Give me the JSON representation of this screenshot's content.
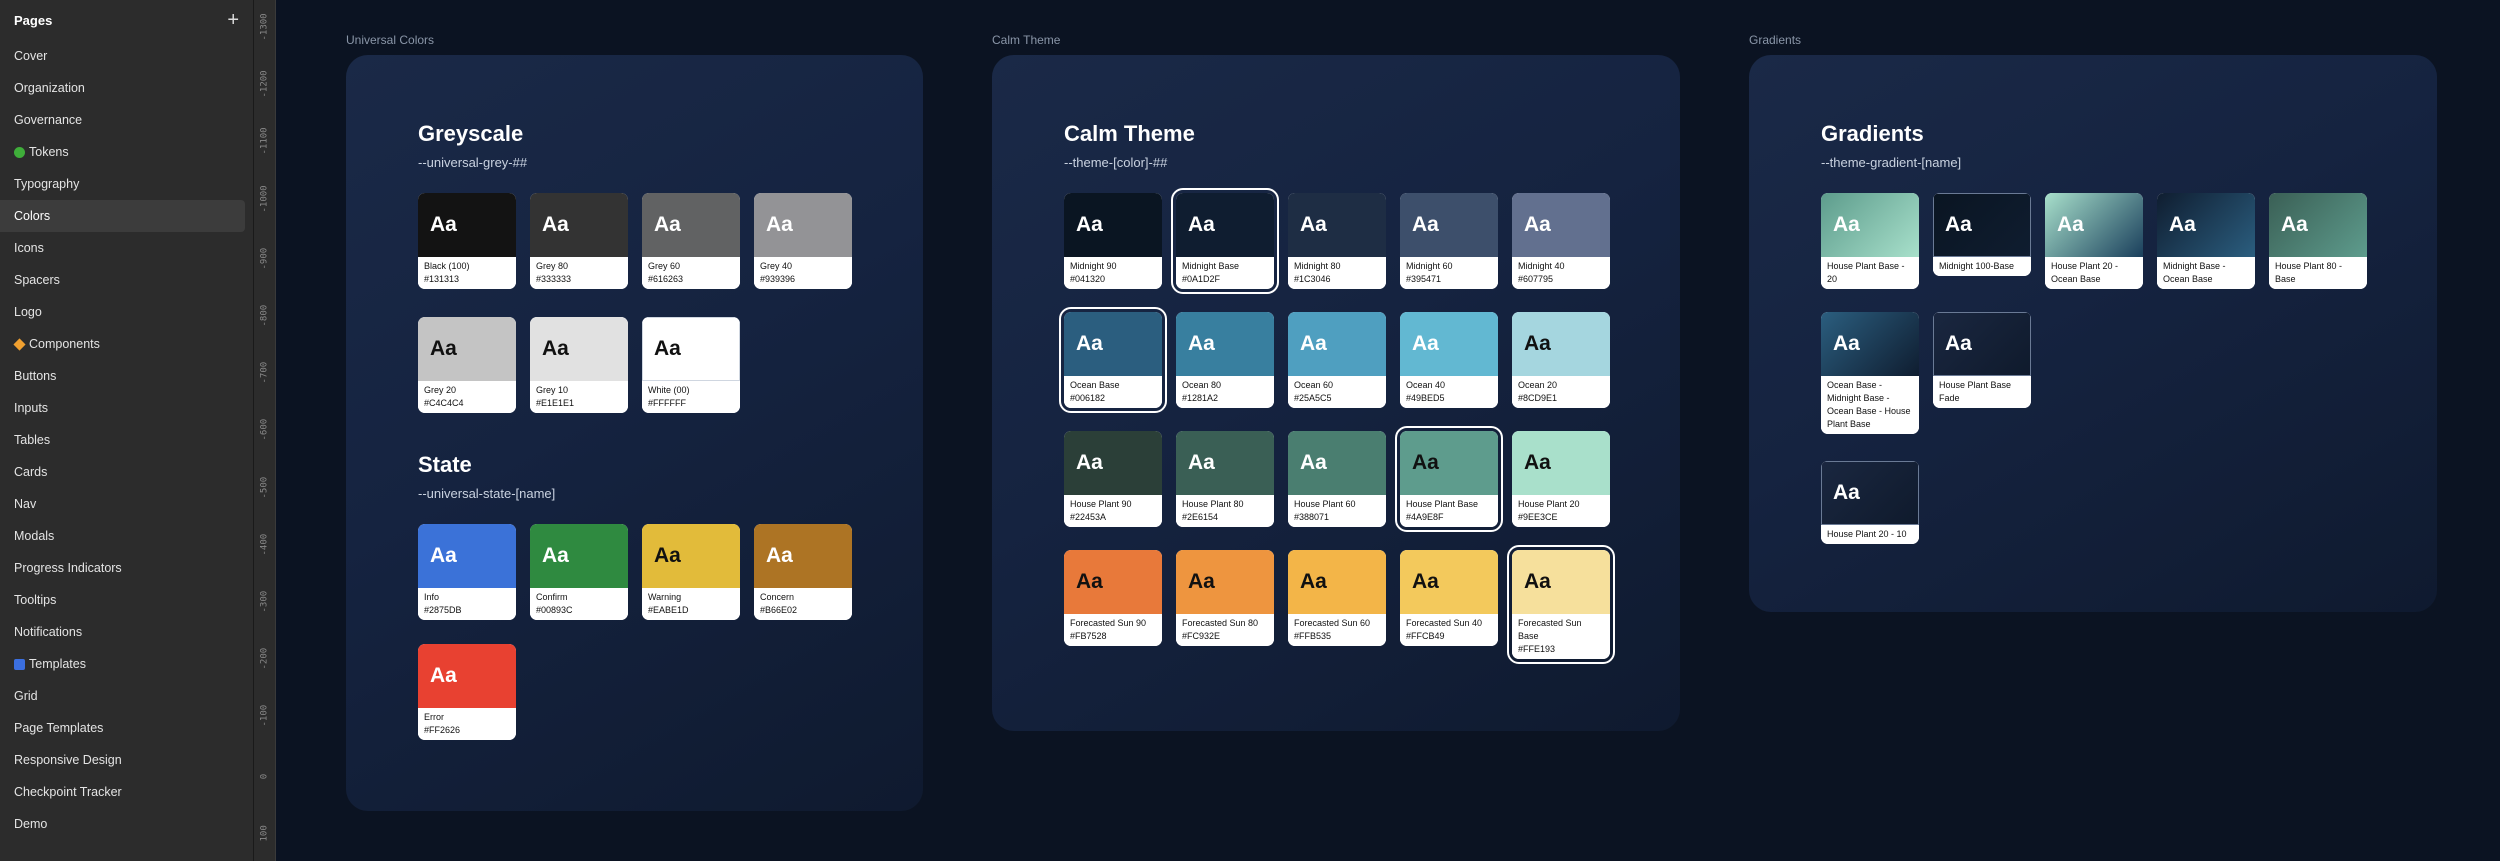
{
  "sidebar": {
    "title": "Pages",
    "add_icon": "plus-icon",
    "items": [
      {
        "label": "Cover"
      },
      {
        "label": "Organization"
      },
      {
        "label": "Governance"
      },
      {
        "label": "Tokens",
        "icon": "green-circle-icon",
        "color": "#3fae3a"
      },
      {
        "label": "Typography"
      },
      {
        "label": "Colors",
        "active": true
      },
      {
        "label": "Icons"
      },
      {
        "label": "Spacers"
      },
      {
        "label": "Logo"
      },
      {
        "label": "Components",
        "icon": "orange-diamond-icon",
        "color": "#f0a030"
      },
      {
        "label": "Buttons"
      },
      {
        "label": "Inputs"
      },
      {
        "label": "Tables"
      },
      {
        "label": "Cards"
      },
      {
        "label": "Nav"
      },
      {
        "label": "Modals"
      },
      {
        "label": "Progress Indicators"
      },
      {
        "label": "Tooltips"
      },
      {
        "label": "Notifications"
      },
      {
        "label": "Templates",
        "icon": "blue-square-icon",
        "color": "#3b6fe0"
      },
      {
        "label": "Grid"
      },
      {
        "label": "Page Templates"
      },
      {
        "label": "Responsive Design"
      },
      {
        "label": "Checkpoint Tracker"
      },
      {
        "label": "Demo"
      }
    ]
  },
  "ruler": {
    "ticks": [
      "-1300",
      "-1200",
      "-1100",
      "-1000",
      "-900",
      "-800",
      "-700",
      "-600",
      "-500",
      "-400",
      "-300",
      "-200",
      "-100",
      "0",
      "100"
    ]
  },
  "frames": {
    "universal": {
      "label": "Universal Colors",
      "greyscale": {
        "title": "Greyscale",
        "subtitle": "--universal-grey-##",
        "swatches": [
          {
            "sample": "Aa",
            "name": "Black (100)",
            "hex": "#131313",
            "color": "#131313",
            "text": "#ffffff"
          },
          {
            "sample": "Aa",
            "name": "Grey 80",
            "hex": "#333333",
            "color": "#333333",
            "text": "#ffffff"
          },
          {
            "sample": "Aa",
            "name": "Grey 60",
            "hex": "#616263",
            "color": "#616263",
            "text": "#ffffff"
          },
          {
            "sample": "Aa",
            "name": "Grey 40",
            "hex": "#939396",
            "color": "#939396",
            "text": "#ffffff"
          },
          {
            "sample": "Aa",
            "name": "Grey 20",
            "hex": "#C4C4C4",
            "color": "#C4C4C4",
            "text": "#111111"
          },
          {
            "sample": "Aa",
            "name": "Grey 10",
            "hex": "#E1E1E1",
            "color": "#E1E1E1",
            "text": "#111111"
          },
          {
            "sample": "Aa",
            "name": "White (00)",
            "hex": "#FFFFFF",
            "color": "#FFFFFF",
            "text": "#111111"
          }
        ]
      },
      "state": {
        "title": "State",
        "subtitle": "--universal-state-[name]",
        "swatches": [
          {
            "sample": "Aa",
            "name": "Info",
            "hex": "#2875DB",
            "color": "#3b72d8",
            "text": "#ffffff"
          },
          {
            "sample": "Aa",
            "name": "Confirm",
            "hex": "#00893C",
            "color": "#2f8a40",
            "text": "#ffffff"
          },
          {
            "sample": "Aa",
            "name": "Warning",
            "hex": "#EABE1D",
            "color": "#e2bb3a",
            "text": "#111111"
          },
          {
            "sample": "Aa",
            "name": "Concern",
            "hex": "#B66E02",
            "color": "#ad7424",
            "text": "#ffffff"
          },
          {
            "sample": "Aa",
            "name": "Error",
            "hex": "#FF2626",
            "color": "#e84131",
            "text": "#ffffff"
          }
        ]
      }
    },
    "calm": {
      "label": "Calm Theme",
      "title": "Calm Theme",
      "subtitle": "--theme-[color]-##",
      "swatches": [
        {
          "sample": "Aa",
          "name": "Midnight 90",
          "hex": "#041320",
          "color": "#0a1522",
          "text": "#ffffff"
        },
        {
          "sample": "Aa",
          "name": "Midnight Base",
          "hex": "#0A1D2F",
          "color": "#0f1d30",
          "text": "#ffffff",
          "selected": true
        },
        {
          "sample": "Aa",
          "name": "Midnight 80",
          "hex": "#1C3046",
          "color": "#1e2d44",
          "text": "#ffffff"
        },
        {
          "sample": "Aa",
          "name": "Midnight 60",
          "hex": "#395471",
          "color": "#3d4f6b",
          "text": "#ffffff"
        },
        {
          "sample": "Aa",
          "name": "Midnight 40",
          "hex": "#607795",
          "color": "#62708f",
          "text": "#ffffff"
        },
        {
          "sample": "Aa",
          "name": "Ocean Base",
          "hex": "#006182",
          "color": "#2b5e7f",
          "text": "#ffffff",
          "selected": true
        },
        {
          "sample": "Aa",
          "name": "Ocean 80",
          "hex": "#1281A2",
          "color": "#387f9f",
          "text": "#ffffff"
        },
        {
          "sample": "Aa",
          "name": "Ocean 60",
          "hex": "#25A5C5",
          "color": "#4f9fc0",
          "text": "#ffffff"
        },
        {
          "sample": "Aa",
          "name": "Ocean 40",
          "hex": "#49BED5",
          "color": "#62b8d2",
          "text": "#ffffff"
        },
        {
          "sample": "Aa",
          "name": "Ocean 20",
          "hex": "#8CD9E1",
          "color": "#a5d6df",
          "text": "#111111"
        },
        {
          "sample": "Aa",
          "name": "House Plant 90",
          "hex": "#22453A",
          "color": "#2b3f38",
          "text": "#ffffff"
        },
        {
          "sample": "Aa",
          "name": "House Plant 80",
          "hex": "#2E6154",
          "color": "#3a5f55",
          "text": "#ffffff"
        },
        {
          "sample": "Aa",
          "name": "House Plant 60",
          "hex": "#388071",
          "color": "#4a7e70",
          "text": "#ffffff"
        },
        {
          "sample": "Aa",
          "name": "House Plant Base",
          "hex": "#4A9E8F",
          "color": "#5e9c8d",
          "text": "#111111",
          "selected": true
        },
        {
          "sample": "Aa",
          "name": "House Plant 20",
          "hex": "#9EE3CE",
          "color": "#a9e0cb",
          "text": "#111111"
        },
        {
          "sample": "Aa",
          "name": "Forecasted Sun 90",
          "hex": "#FB7528",
          "color": "#e8793a",
          "text": "#111111"
        },
        {
          "sample": "Aa",
          "name": "Forecasted Sun 80",
          "hex": "#FC932E",
          "color": "#ee953f",
          "text": "#111111"
        },
        {
          "sample": "Aa",
          "name": "Forecasted Sun 60",
          "hex": "#FFB535",
          "color": "#f3b548",
          "text": "#111111"
        },
        {
          "sample": "Aa",
          "name": "Forecasted Sun 40",
          "hex": "#FFCB49",
          "color": "#f3c95c",
          "text": "#111111"
        },
        {
          "sample": "Aa",
          "name": "Forecasted Sun Base",
          "hex": "#FFE193",
          "color": "#f6e09c",
          "text": "#111111",
          "selected": true
        }
      ]
    },
    "gradients": {
      "label": "Gradients",
      "title": "Gradients",
      "subtitle": "--theme-gradient-[name]",
      "swatches": [
        {
          "sample": "Aa",
          "name": "House Plant Base - 20",
          "from": "#5d9c8c",
          "to": "#a8e0cb"
        },
        {
          "sample": "Aa",
          "name": "Midnight 100-Base",
          "from": "#0a1522",
          "to": "#0f1d30"
        },
        {
          "sample": "Aa",
          "name": "House Plant 20 - Ocean Base",
          "from": "#a8e0cb",
          "to": "#1a3f5c"
        },
        {
          "sample": "Aa",
          "name": "Midnight Base - Ocean Base",
          "from": "#0f1d30",
          "to": "#2b5e7f"
        },
        {
          "sample": "Aa",
          "name": "House Plant 80 - Base",
          "from": "#3a5f55",
          "to": "#5e9c8d"
        },
        {
          "sample": "Aa",
          "name": "Ocean Base - Midnight Base - Ocean Base - House Plant Base",
          "from": "#2b5e7f",
          "to": "#0f1d30"
        },
        {
          "sample": "Aa",
          "name": "House Plant Base Fade",
          "from": "#1a2740",
          "to": "#0f1a2c"
        },
        {
          "sample": "Aa",
          "name": "House Plant 20 - 10",
          "from": "#1a2740",
          "to": "#0f1a2c"
        }
      ]
    }
  }
}
